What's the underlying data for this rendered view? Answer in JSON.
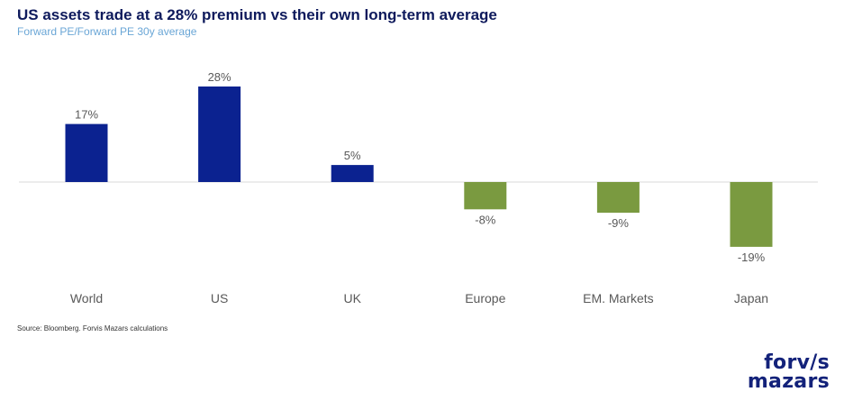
{
  "header": {
    "title": "US assets trade at a 28% premium vs their own long-term average",
    "subtitle": "Forward PE/Forward PE 30y average"
  },
  "footer": {
    "source": "Source: Bloomberg. Forvis Mazars calculations"
  },
  "logo": {
    "line1": "forv/s",
    "line2": "mazars"
  },
  "colors": {
    "positive": "#0b2290",
    "negative": "#7a9a40",
    "axis": "#d9d9d9",
    "label": "#595959"
  },
  "chart_data": {
    "type": "bar",
    "categories": [
      "World",
      "US",
      "UK",
      "Europe",
      "EM. Markets",
      "Japan"
    ],
    "values": [
      17,
      28,
      5,
      -8,
      -9,
      -19
    ],
    "data_labels": [
      "17%",
      "28%",
      "5%",
      "-8%",
      "-9%",
      "-19%"
    ],
    "ylim": [
      -19,
      28
    ],
    "grid": false,
    "legend": "none"
  }
}
